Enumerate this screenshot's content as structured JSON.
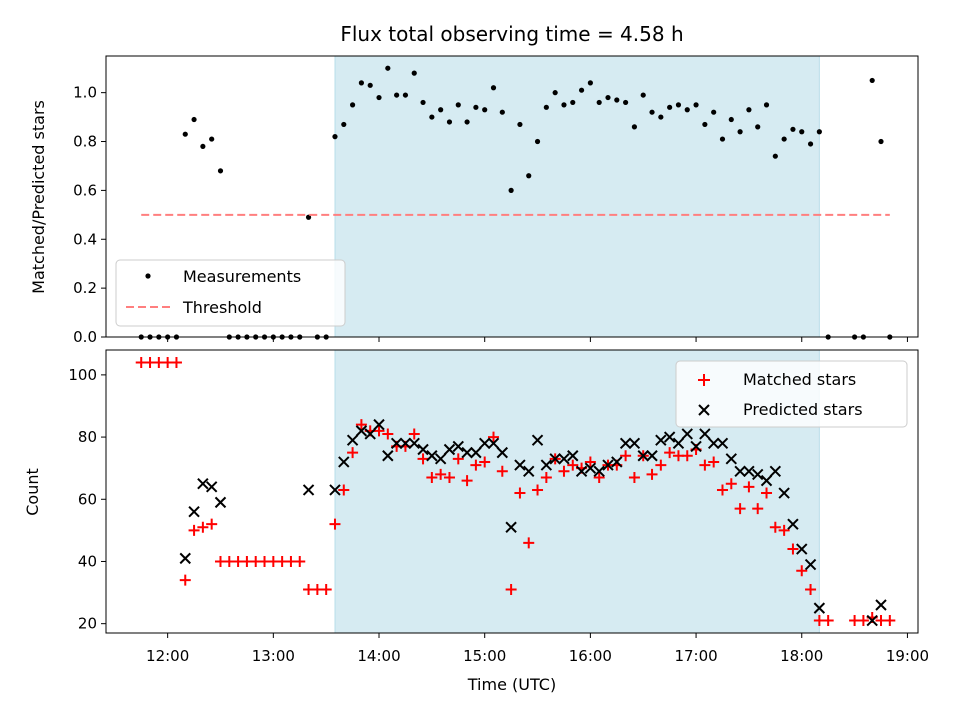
{
  "chart_data": [
    {
      "type": "scatter",
      "title": "Flux total observing time = 4.58 h",
      "xlabel": "",
      "ylabel": "Matched/Predicted stars",
      "xlim": [
        "11:25",
        "19:06"
      ],
      "ylim": [
        0,
        1.15
      ],
      "yticks": [
        0.0,
        0.2,
        0.4,
        0.6,
        0.8,
        1.0
      ],
      "grid": false,
      "legend_position": "lower-left",
      "shaded_interval": [
        "13:35",
        "18:10"
      ],
      "shade_color": "#add8e6",
      "series": [
        {
          "name": "Measurements",
          "marker": "dot",
          "color": "#000000",
          "points": [
            [
              "11:45",
              0.0
            ],
            [
              "11:50",
              0.0
            ],
            [
              "11:55",
              0.0
            ],
            [
              "12:00",
              0.0
            ],
            [
              "12:05",
              0.0
            ],
            [
              "12:10",
              0.83
            ],
            [
              "12:15",
              0.89
            ],
            [
              "12:20",
              0.78
            ],
            [
              "12:25",
              0.81
            ],
            [
              "12:30",
              0.68
            ],
            [
              "12:35",
              0.0
            ],
            [
              "12:40",
              0.0
            ],
            [
              "12:45",
              0.0
            ],
            [
              "12:50",
              0.0
            ],
            [
              "12:55",
              0.0
            ],
            [
              "13:00",
              0.0
            ],
            [
              "13:05",
              0.0
            ],
            [
              "13:10",
              0.0
            ],
            [
              "13:15",
              0.0
            ],
            [
              "13:20",
              0.49
            ],
            [
              "13:25",
              0.0
            ],
            [
              "13:30",
              0.0
            ],
            [
              "13:35",
              0.82
            ],
            [
              "13:40",
              0.87
            ],
            [
              "13:45",
              0.95
            ],
            [
              "13:50",
              1.04
            ],
            [
              "13:55",
              1.03
            ],
            [
              "14:00",
              0.98
            ],
            [
              "14:05",
              1.1
            ],
            [
              "14:10",
              0.99
            ],
            [
              "14:15",
              0.99
            ],
            [
              "14:20",
              1.08
            ],
            [
              "14:25",
              0.96
            ],
            [
              "14:30",
              0.9
            ],
            [
              "14:35",
              0.93
            ],
            [
              "14:40",
              0.88
            ],
            [
              "14:45",
              0.95
            ],
            [
              "14:50",
              0.88
            ],
            [
              "14:55",
              0.94
            ],
            [
              "15:00",
              0.93
            ],
            [
              "15:05",
              1.02
            ],
            [
              "15:10",
              0.92
            ],
            [
              "15:15",
              0.6
            ],
            [
              "15:20",
              0.87
            ],
            [
              "15:25",
              0.66
            ],
            [
              "15:30",
              0.8
            ],
            [
              "15:35",
              0.94
            ],
            [
              "15:40",
              1.0
            ],
            [
              "15:45",
              0.95
            ],
            [
              "15:50",
              0.96
            ],
            [
              "15:55",
              1.01
            ],
            [
              "16:00",
              1.04
            ],
            [
              "16:05",
              0.96
            ],
            [
              "16:10",
              0.98
            ],
            [
              "16:15",
              0.97
            ],
            [
              "16:20",
              0.96
            ],
            [
              "16:25",
              0.86
            ],
            [
              "16:30",
              0.99
            ],
            [
              "16:35",
              0.92
            ],
            [
              "16:40",
              0.9
            ],
            [
              "16:45",
              0.94
            ],
            [
              "16:50",
              0.95
            ],
            [
              "16:55",
              0.93
            ],
            [
              "17:00",
              0.95
            ],
            [
              "17:05",
              0.87
            ],
            [
              "17:10",
              0.92
            ],
            [
              "17:15",
              0.81
            ],
            [
              "17:20",
              0.89
            ],
            [
              "17:25",
              0.84
            ],
            [
              "17:30",
              0.93
            ],
            [
              "17:35",
              0.86
            ],
            [
              "17:40",
              0.95
            ],
            [
              "17:45",
              0.74
            ],
            [
              "17:50",
              0.81
            ],
            [
              "17:55",
              0.85
            ],
            [
              "18:00",
              0.84
            ],
            [
              "18:05",
              0.79
            ],
            [
              "18:10",
              0.84
            ],
            [
              "18:15",
              0.0
            ],
            [
              "18:30",
              0.0
            ],
            [
              "18:35",
              0.0
            ],
            [
              "18:40",
              1.05
            ],
            [
              "18:45",
              0.8
            ],
            [
              "18:50",
              0.0
            ]
          ]
        },
        {
          "name": "Threshold",
          "type": "line",
          "style": "dashed",
          "color": "#ff7f7f",
          "points": [
            [
              "11:45",
              0.5
            ],
            [
              "18:50",
              0.5
            ]
          ]
        }
      ]
    },
    {
      "type": "scatter",
      "title": "",
      "xlabel": "Time (UTC)",
      "ylabel": "Count",
      "xlim": [
        "11:25",
        "19:06"
      ],
      "ylim": [
        17,
        108
      ],
      "yticks": [
        20,
        40,
        60,
        80,
        100
      ],
      "xticks": [
        "12:00",
        "13:00",
        "14:00",
        "15:00",
        "16:00",
        "17:00",
        "18:00",
        "19:00"
      ],
      "grid": false,
      "legend_position": "upper-right",
      "shaded_interval": [
        "13:35",
        "18:10"
      ],
      "shade_color": "#add8e6",
      "series": [
        {
          "name": "Matched stars",
          "marker": "plus",
          "color": "#ff0000",
          "points": [
            [
              "11:45",
              104
            ],
            [
              "11:50",
              104
            ],
            [
              "11:55",
              104
            ],
            [
              "12:00",
              104
            ],
            [
              "12:05",
              104
            ],
            [
              "12:10",
              34
            ],
            [
              "12:15",
              50
            ],
            [
              "12:20",
              51
            ],
            [
              "12:25",
              52
            ],
            [
              "12:30",
              40
            ],
            [
              "12:35",
              40
            ],
            [
              "12:40",
              40
            ],
            [
              "12:45",
              40
            ],
            [
              "12:50",
              40
            ],
            [
              "12:55",
              40
            ],
            [
              "13:00",
              40
            ],
            [
              "13:05",
              40
            ],
            [
              "13:10",
              40
            ],
            [
              "13:15",
              40
            ],
            [
              "13:20",
              31
            ],
            [
              "13:25",
              31
            ],
            [
              "13:30",
              31
            ],
            [
              "13:35",
              52
            ],
            [
              "13:40",
              63
            ],
            [
              "13:45",
              75
            ],
            [
              "13:50",
              84
            ],
            [
              "13:55",
              82
            ],
            [
              "14:00",
              82
            ],
            [
              "14:05",
              81
            ],
            [
              "14:10",
              77
            ],
            [
              "14:15",
              77
            ],
            [
              "14:20",
              81
            ],
            [
              "14:25",
              73
            ],
            [
              "14:30",
              67
            ],
            [
              "14:35",
              68
            ],
            [
              "14:40",
              67
            ],
            [
              "14:45",
              73
            ],
            [
              "14:50",
              66
            ],
            [
              "14:55",
              71
            ],
            [
              "15:00",
              72
            ],
            [
              "15:05",
              80
            ],
            [
              "15:10",
              69
            ],
            [
              "15:15",
              31
            ],
            [
              "15:20",
              62
            ],
            [
              "15:25",
              46
            ],
            [
              "15:30",
              63
            ],
            [
              "15:35",
              67
            ],
            [
              "15:40",
              73
            ],
            [
              "15:45",
              69
            ],
            [
              "15:50",
              71
            ],
            [
              "15:55",
              70
            ],
            [
              "16:00",
              72
            ],
            [
              "16:05",
              67
            ],
            [
              "16:10",
              71
            ],
            [
              "16:15",
              71
            ],
            [
              "16:20",
              74
            ],
            [
              "16:25",
              67
            ],
            [
              "16:30",
              74
            ],
            [
              "16:35",
              68
            ],
            [
              "16:40",
              71
            ],
            [
              "16:45",
              75
            ],
            [
              "16:50",
              74
            ],
            [
              "16:55",
              74
            ],
            [
              "17:00",
              76
            ],
            [
              "17:05",
              71
            ],
            [
              "17:10",
              72
            ],
            [
              "17:15",
              63
            ],
            [
              "17:20",
              65
            ],
            [
              "17:25",
              57
            ],
            [
              "17:30",
              64
            ],
            [
              "17:35",
              57
            ],
            [
              "17:40",
              62
            ],
            [
              "17:45",
              51
            ],
            [
              "17:50",
              50
            ],
            [
              "17:55",
              44
            ],
            [
              "18:00",
              37
            ],
            [
              "18:05",
              31
            ],
            [
              "18:10",
              21
            ],
            [
              "18:15",
              21
            ],
            [
              "18:30",
              21
            ],
            [
              "18:35",
              21
            ],
            [
              "18:40",
              22
            ],
            [
              "18:45",
              21
            ],
            [
              "18:50",
              21
            ]
          ]
        },
        {
          "name": "Predicted stars",
          "marker": "x",
          "color": "#000000",
          "points": [
            [
              "12:10",
              41
            ],
            [
              "12:15",
              56
            ],
            [
              "12:20",
              65
            ],
            [
              "12:25",
              64
            ],
            [
              "12:30",
              59
            ],
            [
              "13:20",
              63
            ],
            [
              "13:35",
              63
            ],
            [
              "13:40",
              72
            ],
            [
              "13:45",
              79
            ],
            [
              "13:50",
              82
            ],
            [
              "13:55",
              81
            ],
            [
              "14:00",
              84
            ],
            [
              "14:05",
              74
            ],
            [
              "14:10",
              78
            ],
            [
              "14:15",
              78
            ],
            [
              "14:20",
              78
            ],
            [
              "14:25",
              76
            ],
            [
              "14:30",
              74
            ],
            [
              "14:35",
              73
            ],
            [
              "14:40",
              76
            ],
            [
              "14:45",
              77
            ],
            [
              "14:50",
              75
            ],
            [
              "14:55",
              75
            ],
            [
              "15:00",
              78
            ],
            [
              "15:05",
              78
            ],
            [
              "15:10",
              75
            ],
            [
              "15:15",
              51
            ],
            [
              "15:20",
              71
            ],
            [
              "15:25",
              69
            ],
            [
              "15:30",
              79
            ],
            [
              "15:35",
              71
            ],
            [
              "15:40",
              73
            ],
            [
              "15:45",
              73
            ],
            [
              "15:50",
              74
            ],
            [
              "15:55",
              69
            ],
            [
              "16:00",
              70
            ],
            [
              "16:05",
              69
            ],
            [
              "16:10",
              71
            ],
            [
              "16:15",
              72
            ],
            [
              "16:20",
              78
            ],
            [
              "16:25",
              78
            ],
            [
              "16:30",
              74
            ],
            [
              "16:35",
              74
            ],
            [
              "16:40",
              79
            ],
            [
              "16:45",
              80
            ],
            [
              "16:50",
              78
            ],
            [
              "16:55",
              81
            ],
            [
              "17:00",
              77
            ],
            [
              "17:05",
              81
            ],
            [
              "17:10",
              78
            ],
            [
              "17:15",
              78
            ],
            [
              "17:20",
              73
            ],
            [
              "17:25",
              69
            ],
            [
              "17:30",
              69
            ],
            [
              "17:35",
              68
            ],
            [
              "17:40",
              66
            ],
            [
              "17:45",
              69
            ],
            [
              "17:50",
              62
            ],
            [
              "17:55",
              52
            ],
            [
              "18:00",
              44
            ],
            [
              "18:05",
              39
            ],
            [
              "18:10",
              25
            ],
            [
              "18:40",
              21
            ],
            [
              "18:45",
              26
            ]
          ]
        }
      ]
    }
  ]
}
